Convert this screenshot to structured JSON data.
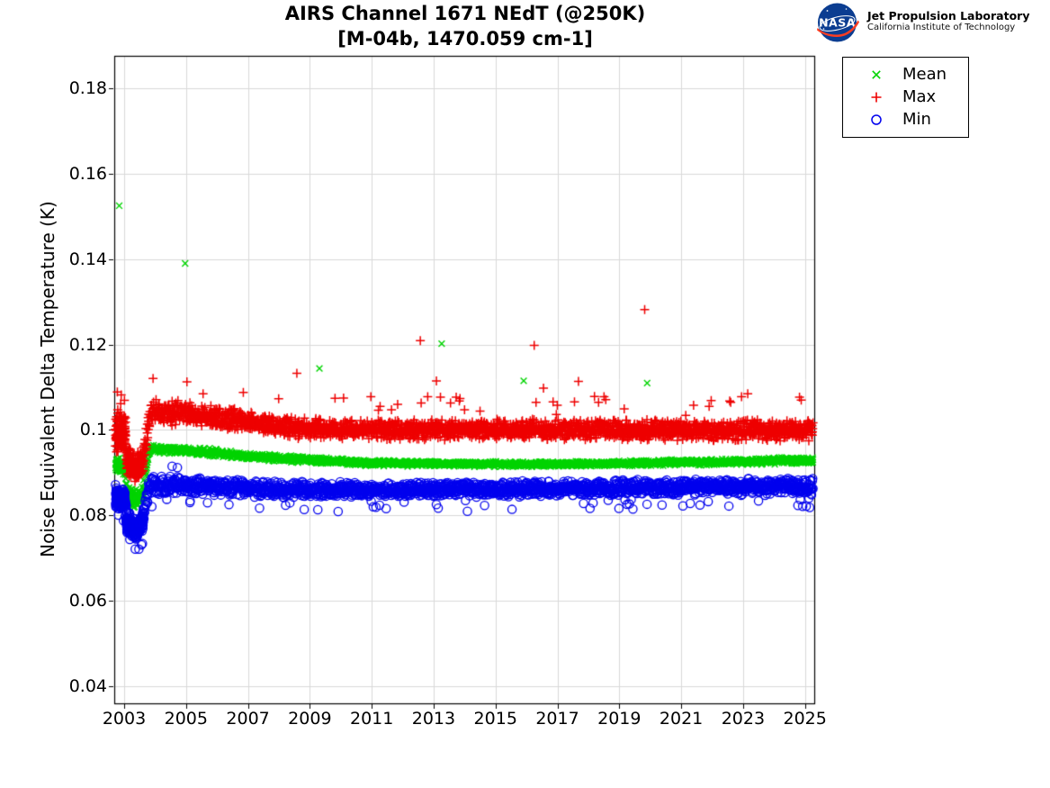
{
  "header": {
    "org_line1": "Jet Propulsion Laboratory",
    "org_line2": "California Institute of Technology",
    "logo_text": "NASA",
    "logo_colors": {
      "disc": "#0B3D91",
      "vector": "#FC3D21"
    }
  },
  "chart_data": {
    "type": "scatter",
    "title": "AIRS Channel 1671 NEdT (@250K)",
    "subtitle": "[M-04b, 1470.059 cm-1]",
    "xlabel": "",
    "ylabel": "Noise Equivalent Delta Temperature (K)",
    "xlim": [
      2002.68,
      2025.3
    ],
    "ylim": [
      0.036,
      0.1876
    ],
    "xticks": [
      2003,
      2005,
      2007,
      2009,
      2011,
      2013,
      2015,
      2017,
      2019,
      2021,
      2023,
      2025
    ],
    "yticks": [
      0.18,
      0.16,
      0.14,
      0.12,
      0.1,
      0.08,
      0.06,
      0.04
    ],
    "ytick_labels": [
      "0.18",
      "0.16",
      "0.14",
      "0.12",
      "0.1",
      "0.08",
      "0.06",
      "0.04"
    ],
    "grid": true,
    "grid_color": "#d9d9d9",
    "axis_color": "#000000",
    "data_range": [
      2002.72,
      2025.26
    ],
    "legend": {
      "position": "outside-upper-right",
      "entries": [
        "Mean",
        "Max",
        "Min"
      ]
    },
    "series": [
      {
        "name": "Mean",
        "marker": "x",
        "color": "#00d400",
        "n": 2300,
        "anchors": [
          [
            2002.7,
            0.0921,
            0.0024
          ],
          [
            2003.04,
            0.0908,
            0.0018
          ],
          [
            2003.08,
            0.0852,
            0.0024
          ],
          [
            2003.35,
            0.0838,
            0.0024
          ],
          [
            2003.6,
            0.0846,
            0.0022
          ],
          [
            2003.78,
            0.0945,
            0.0012
          ],
          [
            2003.86,
            0.0955,
            0.0011
          ],
          [
            2005.0,
            0.0951,
            0.001
          ],
          [
            2006.0,
            0.0947,
            0.001
          ],
          [
            2007.0,
            0.0939,
            0.0009
          ],
          [
            2008.0,
            0.0934,
            0.0009
          ],
          [
            2009.0,
            0.093,
            0.0009
          ],
          [
            2010.0,
            0.0926,
            0.0008
          ],
          [
            2011.0,
            0.0923,
            0.0008
          ],
          [
            2013.0,
            0.0921,
            0.0007
          ],
          [
            2015.0,
            0.092,
            0.0007
          ],
          [
            2017.0,
            0.092,
            0.0007
          ],
          [
            2019.0,
            0.0922,
            0.0007
          ],
          [
            2021.0,
            0.0924,
            0.0008
          ],
          [
            2023.0,
            0.0926,
            0.0008
          ],
          [
            2025.26,
            0.0929,
            0.0009
          ]
        ],
        "extra_clusters": [
          {
            "range": [
              2002.72,
              2003.05
            ],
            "n": 60
          },
          {
            "range": [
              2003.06,
              2003.62
            ],
            "n": 70
          }
        ],
        "outliers": [
          [
            2002.84,
            0.1525
          ],
          [
            2004.97,
            0.139
          ],
          [
            2009.31,
            0.1144
          ],
          [
            2013.26,
            0.1202
          ],
          [
            2015.91,
            0.1115
          ],
          [
            2019.9,
            0.111
          ]
        ]
      },
      {
        "name": "Max",
        "marker": "+",
        "color": "#ee0000",
        "n": 2600,
        "spike_up": 0.012,
        "anchors": [
          [
            2002.7,
            0.0998,
            0.0058
          ],
          [
            2003.04,
            0.0992,
            0.0045
          ],
          [
            2003.08,
            0.093,
            0.0036
          ],
          [
            2003.35,
            0.0912,
            0.0036
          ],
          [
            2003.6,
            0.0925,
            0.0034
          ],
          [
            2003.78,
            0.101,
            0.0034
          ],
          [
            2003.86,
            0.1043,
            0.0032
          ],
          [
            2004.6,
            0.104,
            0.003
          ],
          [
            2006.0,
            0.103,
            0.0028
          ],
          [
            2007.0,
            0.102,
            0.0027
          ],
          [
            2008.0,
            0.1008,
            0.0026
          ],
          [
            2009.0,
            0.1003,
            0.0026
          ],
          [
            2010.0,
            0.1001,
            0.0025
          ],
          [
            2013.0,
            0.1001,
            0.0026
          ],
          [
            2016.0,
            0.1,
            0.0026
          ],
          [
            2019.0,
            0.1,
            0.0026
          ],
          [
            2022.0,
            0.0999,
            0.0026
          ],
          [
            2025.26,
            0.0999,
            0.0028
          ]
        ],
        "extra_clusters": [
          {
            "range": [
              2002.72,
              2003.05
            ],
            "n": 110
          },
          {
            "range": [
              2003.06,
              2003.62
            ],
            "n": 110
          }
        ],
        "outliers": [
          [
            2005.55,
            0.1085
          ],
          [
            2006.85,
            0.1088
          ],
          [
            2008.58,
            0.1133
          ],
          [
            2010.09,
            0.1075
          ],
          [
            2012.57,
            0.1209
          ],
          [
            2013.09,
            0.1115
          ],
          [
            2013.22,
            0.1077
          ],
          [
            2013.73,
            0.1077
          ],
          [
            2013.83,
            0.1068
          ],
          [
            2014.5,
            0.1044
          ],
          [
            2016.25,
            0.1198
          ],
          [
            2016.55,
            0.1098
          ],
          [
            2016.86,
            0.1066
          ],
          [
            2017.68,
            0.1114
          ],
          [
            2018.33,
            0.1065
          ],
          [
            2019.82,
            0.1282
          ],
          [
            2021.4,
            0.1058
          ],
          [
            2022.6,
            0.1065
          ],
          [
            2022.95,
            0.1078
          ],
          [
            2023.15,
            0.1085
          ]
        ]
      },
      {
        "name": "Min",
        "marker": "o",
        "color": "#0000ee",
        "n": 2300,
        "tail_low": 0.03,
        "anchors": [
          [
            2002.7,
            0.0845,
            0.0034
          ],
          [
            2003.04,
            0.0834,
            0.0028
          ],
          [
            2003.08,
            0.0788,
            0.003
          ],
          [
            2003.35,
            0.0766,
            0.0028
          ],
          [
            2003.6,
            0.0788,
            0.0028
          ],
          [
            2003.78,
            0.0858,
            0.0024
          ],
          [
            2003.86,
            0.0871,
            0.0023
          ],
          [
            2004.6,
            0.0871,
            0.0024
          ],
          [
            2006.0,
            0.0866,
            0.0022
          ],
          [
            2008.0,
            0.0862,
            0.0021
          ],
          [
            2010.0,
            0.086,
            0.002
          ],
          [
            2013.0,
            0.086,
            0.002
          ],
          [
            2016.0,
            0.0862,
            0.002
          ],
          [
            2019.0,
            0.0865,
            0.002
          ],
          [
            2022.0,
            0.0867,
            0.002
          ],
          [
            2025.26,
            0.0868,
            0.0022
          ]
        ],
        "extra_clusters": [
          {
            "range": [
              2002.72,
              2003.05
            ],
            "n": 100
          },
          {
            "range": [
              2003.06,
              2003.62
            ],
            "n": 140
          }
        ],
        "outliers": [
          [
            2004.55,
            0.0915
          ],
          [
            2004.72,
            0.0912
          ]
        ]
      }
    ]
  }
}
